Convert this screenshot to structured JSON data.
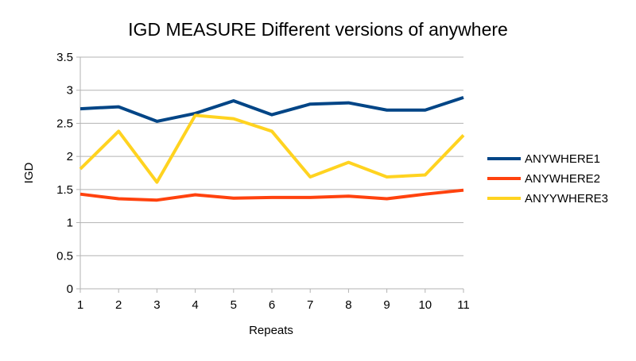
{
  "chart_data": {
    "type": "line",
    "title": "IGD MEASURE Different versions of anywhere",
    "xlabel": "Repeats",
    "ylabel": "IGD",
    "x": [
      1,
      2,
      3,
      4,
      5,
      6,
      7,
      8,
      9,
      10,
      11
    ],
    "ylim": [
      0,
      3.5
    ],
    "yticks": [
      0,
      0.5,
      1,
      1.5,
      2,
      2.5,
      3,
      3.5
    ],
    "ytick_labels": [
      "0",
      "0.5",
      "1",
      "1.5",
      "2",
      "2.5",
      "3",
      "3.5"
    ],
    "grid": "horizontal",
    "legend_position": "right",
    "series": [
      {
        "name": "ANYWHERE1",
        "color": "#004586",
        "values": [
          2.72,
          2.75,
          2.53,
          2.65,
          2.84,
          2.63,
          2.79,
          2.81,
          2.7,
          2.7,
          2.89
        ]
      },
      {
        "name": "ANYWHERE2",
        "color": "#ff420e",
        "values": [
          1.43,
          1.36,
          1.34,
          1.42,
          1.37,
          1.38,
          1.38,
          1.4,
          1.36,
          1.43,
          1.49
        ]
      },
      {
        "name": "ANYYWHERE3",
        "color": "#ffd320",
        "values": [
          1.81,
          2.38,
          1.61,
          2.62,
          2.57,
          2.38,
          1.69,
          1.91,
          1.69,
          1.72,
          2.32
        ]
      }
    ]
  }
}
